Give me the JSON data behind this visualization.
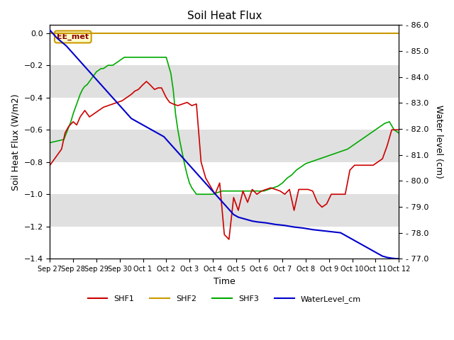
{
  "title": "Soil Heat Flux",
  "xlabel": "Time",
  "ylabel_left": "Soil Heat Flux (W/m2)",
  "ylabel_right": "Water level (cm)",
  "ylim_left": [
    -1.4,
    0.05
  ],
  "ylim_right": [
    77.0,
    86.0
  ],
  "yticks_left": [
    0.0,
    -0.2,
    -0.4,
    -0.6,
    -0.8,
    -1.0,
    -1.2,
    -1.4
  ],
  "yticks_right": [
    77.0,
    78.0,
    79.0,
    80.0,
    81.0,
    82.0,
    83.0,
    84.0,
    85.0,
    86.0
  ],
  "background_color": "#ffffff",
  "band_colors_alt": [
    "#ffffff",
    "#e0e0e0"
  ],
  "EE_met_label": "EE_met",
  "EE_met_border_color": "#cc9900",
  "EE_met_text_color": "#8b0000",
  "EE_met_bg": "#ffffcc",
  "legend_entries": [
    "SHF1",
    "SHF2",
    "SHF3",
    "WaterLevel_cm"
  ],
  "line_colors": {
    "SHF1": "#cc0000",
    "SHF2": "#cc9900",
    "SHF3": "#00aa00",
    "WaterLevel_cm": "#0000cc"
  },
  "x_tick_labels": [
    "Sep 27",
    "Sep 28",
    "Sep 29",
    "Sep 30",
    "Oct 1",
    "Oct 2",
    "Oct 3",
    "Oct 4",
    "Oct 5",
    "Oct 6",
    "Oct 7",
    "Oct 8",
    "Oct 9",
    "Oct 10",
    "Oct 11",
    "Oct 12"
  ],
  "SHF2_value": 0.0,
  "SHF1_x": [
    0,
    0.1,
    0.2,
    0.35,
    0.5,
    0.65,
    0.8,
    1.0,
    1.15,
    1.3,
    1.5,
    1.7,
    1.9,
    2.1,
    2.3,
    2.5,
    2.7,
    2.9,
    3.1,
    3.3,
    3.5,
    3.65,
    3.8,
    4.0,
    4.15,
    4.3,
    4.5,
    4.65,
    4.8,
    5.0,
    5.15,
    5.3,
    5.5,
    5.7,
    5.9,
    6.1,
    6.3,
    6.5,
    6.7,
    6.9,
    7.1,
    7.3,
    7.5,
    7.7,
    7.9,
    8.1,
    8.3,
    8.5,
    8.7,
    8.9,
    9.1,
    9.3,
    9.5,
    9.7,
    9.9,
    10.1,
    10.3,
    10.5,
    10.7,
    10.9,
    11.1,
    11.3,
    11.5,
    11.7,
    11.9,
    12.1,
    12.3,
    12.5,
    12.7,
    12.9,
    13.1,
    13.3,
    13.5,
    13.7,
    13.9,
    14.1,
    14.3,
    14.5,
    14.7,
    14.9,
    15.0
  ],
  "SHF1_y": [
    -0.82,
    -0.8,
    -0.78,
    -0.75,
    -0.72,
    -0.62,
    -0.58,
    -0.55,
    -0.57,
    -0.52,
    -0.48,
    -0.52,
    -0.5,
    -0.48,
    -0.46,
    -0.45,
    -0.44,
    -0.43,
    -0.42,
    -0.4,
    -0.38,
    -0.36,
    -0.35,
    -0.32,
    -0.3,
    -0.32,
    -0.35,
    -0.34,
    -0.34,
    -0.4,
    -0.43,
    -0.44,
    -0.45,
    -0.44,
    -0.43,
    -0.45,
    -0.44,
    -0.8,
    -0.9,
    -0.95,
    -1.0,
    -0.93,
    -1.25,
    -1.28,
    -1.02,
    -1.1,
    -0.98,
    -1.05,
    -0.97,
    -1.0,
    -0.98,
    -0.97,
    -0.96,
    -0.97,
    -0.98,
    -1.0,
    -0.97,
    -1.1,
    -0.97,
    -0.97,
    -0.97,
    -0.98,
    -1.05,
    -1.08,
    -1.06,
    -1.0,
    -1.0,
    -1.0,
    -1.0,
    -0.85,
    -0.82,
    -0.82,
    -0.82,
    -0.82,
    -0.82,
    -0.8,
    -0.78,
    -0.7,
    -0.6,
    -0.6,
    -0.6
  ],
  "SHF3_x": [
    0,
    0.3,
    0.6,
    0.9,
    1.0,
    1.1,
    1.2,
    1.3,
    1.4,
    1.5,
    1.6,
    1.7,
    1.8,
    1.9,
    2.0,
    2.1,
    2.2,
    2.3,
    2.4,
    2.5,
    2.6,
    2.7,
    2.8,
    2.9,
    3.0,
    3.1,
    3.2,
    3.5,
    3.8,
    4.0,
    4.1,
    4.2,
    4.3,
    4.4,
    4.5,
    4.6,
    4.7,
    4.8,
    5.0,
    5.2,
    5.3,
    5.4,
    5.5,
    5.6,
    5.7,
    5.8,
    5.9,
    6.0,
    6.1,
    6.2,
    6.3,
    6.4,
    6.5,
    6.6,
    6.7,
    6.8,
    7.0,
    7.2,
    7.4,
    7.6,
    7.8,
    8.0,
    8.2,
    8.4,
    8.6,
    8.8,
    9.0,
    9.2,
    9.4,
    9.6,
    9.8,
    10.0,
    10.2,
    10.4,
    10.6,
    10.8,
    11.0,
    11.2,
    11.4,
    11.6,
    11.8,
    12.0,
    12.2,
    12.4,
    12.6,
    12.8,
    13.0,
    13.2,
    13.4,
    13.6,
    13.8,
    14.0,
    14.2,
    14.4,
    14.6,
    14.8,
    15.0
  ],
  "SHF3_y": [
    -0.68,
    -0.67,
    -0.66,
    -0.55,
    -0.5,
    -0.46,
    -0.42,
    -0.38,
    -0.35,
    -0.33,
    -0.32,
    -0.3,
    -0.28,
    -0.26,
    -0.24,
    -0.23,
    -0.22,
    -0.22,
    -0.21,
    -0.2,
    -0.2,
    -0.2,
    -0.19,
    -0.18,
    -0.17,
    -0.16,
    -0.15,
    -0.15,
    -0.15,
    -0.15,
    -0.15,
    -0.15,
    -0.15,
    -0.15,
    -0.15,
    -0.15,
    -0.15,
    -0.15,
    -0.15,
    -0.25,
    -0.35,
    -0.5,
    -0.6,
    -0.68,
    -0.75,
    -0.82,
    -0.88,
    -0.93,
    -0.96,
    -0.98,
    -1.0,
    -1.0,
    -1.0,
    -1.0,
    -1.0,
    -1.0,
    -1.0,
    -0.99,
    -0.98,
    -0.98,
    -0.98,
    -0.98,
    -0.98,
    -0.98,
    -0.98,
    -0.98,
    -0.98,
    -0.98,
    -0.97,
    -0.96,
    -0.95,
    -0.93,
    -0.9,
    -0.88,
    -0.85,
    -0.83,
    -0.81,
    -0.8,
    -0.79,
    -0.78,
    -0.77,
    -0.76,
    -0.75,
    -0.74,
    -0.73,
    -0.72,
    -0.7,
    -0.68,
    -0.66,
    -0.64,
    -0.62,
    -0.6,
    -0.58,
    -0.56,
    -0.55,
    -0.6,
    -0.62
  ],
  "WaterLevel_x": [
    0,
    0.15,
    0.3,
    0.5,
    0.7,
    0.9,
    1.1,
    1.3,
    1.5,
    1.7,
    1.9,
    2.1,
    2.3,
    2.5,
    2.7,
    2.9,
    3.1,
    3.3,
    3.5,
    3.7,
    3.9,
    4.1,
    4.3,
    4.5,
    4.7,
    4.9,
    5.1,
    5.3,
    5.5,
    5.7,
    5.9,
    6.1,
    6.3,
    6.5,
    6.7,
    6.9,
    7.1,
    7.3,
    7.5,
    7.7,
    7.9,
    8.1,
    8.3,
    8.5,
    8.7,
    8.9,
    9.1,
    9.3,
    9.5,
    9.7,
    9.9,
    10.1,
    10.3,
    10.5,
    10.7,
    10.9,
    11.1,
    11.3,
    11.5,
    11.7,
    11.9,
    12.1,
    12.3,
    12.5,
    12.7,
    12.9,
    13.1,
    13.3,
    13.5,
    13.7,
    13.9,
    14.1,
    14.3,
    14.5,
    14.7,
    14.9,
    15.0
  ],
  "WaterLevel_y": [
    85.8,
    85.65,
    85.5,
    85.35,
    85.2,
    85.0,
    84.8,
    84.6,
    84.4,
    84.2,
    84.0,
    83.8,
    83.6,
    83.4,
    83.2,
    83.0,
    82.8,
    82.6,
    82.4,
    82.3,
    82.2,
    82.1,
    82.0,
    81.9,
    81.8,
    81.7,
    81.5,
    81.3,
    81.1,
    80.9,
    80.7,
    80.5,
    80.3,
    80.1,
    79.9,
    79.7,
    79.5,
    79.3,
    79.1,
    78.9,
    78.7,
    78.6,
    78.55,
    78.5,
    78.45,
    78.42,
    78.4,
    78.38,
    78.35,
    78.32,
    78.3,
    78.28,
    78.25,
    78.22,
    78.2,
    78.18,
    78.15,
    78.12,
    78.1,
    78.08,
    78.06,
    78.04,
    78.02,
    78.0,
    77.9,
    77.8,
    77.7,
    77.6,
    77.5,
    77.4,
    77.3,
    77.2,
    77.1,
    77.05,
    77.02,
    77.0,
    77.0
  ]
}
